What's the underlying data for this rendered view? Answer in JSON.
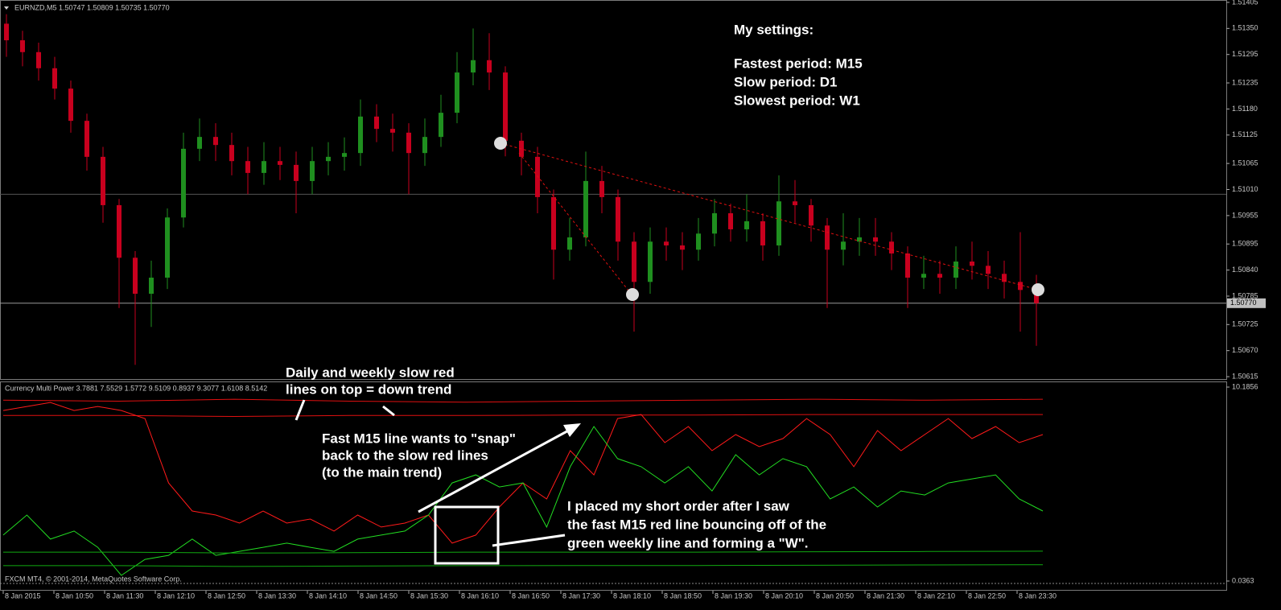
{
  "chart_data": [
    {
      "type": "candlestick",
      "title": "EURNZD,M5  1.50747 1.50809 1.50735 1.50770",
      "ylim": [
        1.5061,
        1.5141
      ],
      "yticks": [
        1.51405,
        {
          "value": 1.5135,
          "label": "1.51350"
        },
        1.51295,
        1.51235,
        {
          "value": 1.5118,
          "label": "1.51180"
        },
        1.51125,
        1.51065,
        {
          "value": 1.5101,
          "label": "1.51010"
        },
        1.50955,
        1.50895,
        {
          "value": 1.5084,
          "label": "1.50840"
        },
        1.50785,
        1.50725,
        {
          "value": 1.5067,
          "label": "1.50670"
        },
        1.50615
      ],
      "current_price": {
        "value": 1.5077,
        "label": "1.50770"
      },
      "level_line": 1.51,
      "up_color": "#1f8f1f",
      "down_color": "#c8001e",
      "x_labels": [
        "8 Jan 2015",
        "8 Jan 10:50",
        "8 Jan 11:30",
        "8 Jan 12:10",
        "8 Jan 12:50",
        "8 Jan 13:30",
        "8 Jan 14:10",
        "8 Jan 14:50",
        "8 Jan 15:30",
        "8 Jan 16:10",
        "8 Jan 16:50",
        "8 Jan 17:30",
        "8 Jan 18:10",
        "8 Jan 18:50",
        "8 Jan 19:30",
        "8 Jan 20:10",
        "8 Jan 20:50",
        "8 Jan 21:30",
        "8 Jan 22:10",
        "8 Jan 22:50",
        "8 Jan 23:30"
      ],
      "annotations": [
        "My settings:",
        "Fastest period: M15",
        "Slow period:        D1",
        "Slowest period:  W1"
      ],
      "open": [
        1.5136,
        1.51325,
        1.513,
        1.51266,
        1.51223,
        1.51155,
        1.51079,
        1.50977,
        1.50866,
        1.5079,
        1.50824,
        1.50951,
        1.51096,
        1.51121,
        1.51104,
        1.5107,
        1.51045,
        1.5107,
        1.51062,
        1.51028,
        1.5107,
        1.51079,
        1.51087,
        1.51164,
        1.51138,
        1.5113,
        1.51087,
        1.51121,
        1.51172,
        1.51257,
        1.51283,
        1.51257,
        1.51113,
        1.51079,
        1.50994,
        1.50883,
        1.50909,
        1.51028,
        1.50994,
        1.509,
        1.50815,
        1.509,
        1.50892,
        1.50883,
        1.50917,
        1.5096,
        1.50926,
        1.50943,
        1.50892,
        1.50985,
        1.50977,
        1.50934,
        1.50883,
        1.509,
        1.50909,
        1.509,
        1.50875,
        1.50824,
        1.50832,
        1.50824,
        1.50858,
        1.50849,
        1.50832,
        1.50815,
        1.50798
      ],
      "high": [
        1.5138,
        1.51345,
        1.5132,
        1.5129,
        1.5124,
        1.5117,
        1.511,
        1.5099,
        1.5088,
        1.5086,
        1.5097,
        1.5113,
        1.5116,
        1.5115,
        1.5113,
        1.511,
        1.5111,
        1.511,
        1.5109,
        1.511,
        1.5111,
        1.5112,
        1.512,
        1.5119,
        1.5117,
        1.5115,
        1.5116,
        1.5121,
        1.513,
        1.5135,
        1.5134,
        1.5127,
        1.5113,
        1.511,
        1.5101,
        1.5095,
        1.5109,
        1.5106,
        1.5101,
        1.5092,
        1.5093,
        1.5093,
        1.5092,
        1.5095,
        1.5099,
        1.5098,
        1.51,
        1.5096,
        1.5104,
        1.5103,
        1.5099,
        1.5095,
        1.5096,
        1.5095,
        1.5095,
        1.5092,
        1.5089,
        1.5087,
        1.5086,
        1.5089,
        1.509,
        1.5088,
        1.5086,
        1.5092,
        1.5083
      ],
      "low": [
        1.5129,
        1.5127,
        1.5124,
        1.512,
        1.5113,
        1.5105,
        1.5094,
        1.5076,
        1.5064,
        1.5072,
        1.508,
        1.5093,
        1.5107,
        1.5107,
        1.5104,
        1.51,
        1.5102,
        1.5103,
        1.5096,
        1.51,
        1.5104,
        1.5105,
        1.5106,
        1.5111,
        1.5109,
        1.51,
        1.5106,
        1.511,
        1.5115,
        1.5123,
        1.5122,
        1.5108,
        1.5104,
        1.5096,
        1.5082,
        1.5086,
        1.5089,
        1.5096,
        1.5086,
        1.5071,
        1.5079,
        1.5086,
        1.5084,
        1.5086,
        1.5089,
        1.509,
        1.509,
        1.5086,
        1.5087,
        1.5094,
        1.509,
        1.5076,
        1.5085,
        1.5087,
        1.5087,
        1.5084,
        1.5076,
        1.508,
        1.5079,
        1.508,
        1.5082,
        1.508,
        1.5078,
        1.5071,
        1.5068
      ],
      "close": [
        1.51325,
        1.513,
        1.51266,
        1.51223,
        1.51155,
        1.51079,
        1.50977,
        1.50866,
        1.5079,
        1.50824,
        1.50951,
        1.51096,
        1.51121,
        1.51104,
        1.5107,
        1.51045,
        1.5107,
        1.51062,
        1.51028,
        1.5107,
        1.51079,
        1.51087,
        1.51164,
        1.51138,
        1.5113,
        1.51087,
        1.51121,
        1.51172,
        1.51257,
        1.51283,
        1.51257,
        1.51113,
        1.51079,
        1.50994,
        1.50883,
        1.50909,
        1.51028,
        1.50994,
        1.509,
        1.50815,
        1.509,
        1.50892,
        1.50883,
        1.50917,
        1.5096,
        1.50926,
        1.50943,
        1.50892,
        1.50985,
        1.50977,
        1.50934,
        1.50883,
        1.509,
        1.50909,
        1.509,
        1.50875,
        1.50824,
        1.50832,
        1.50824,
        1.50858,
        1.50849,
        1.50832,
        1.50815,
        1.50798,
        1.5077
      ]
    },
    {
      "type": "line",
      "title": "Currency Multi Power 3.7881 7.5529 1.5772 9.5109 0.8937 9.3077 1.6108 8.5142",
      "ylim": [
        0.0363,
        10.1856
      ],
      "yticks": [
        10.1856,
        0.0363
      ],
      "footer": "FXCM MT4, © 2001-2014, MetaQuotes Software Corp.",
      "annotations": [
        "Daily and weekly slow red",
        "lines on top = down trend",
        "Fast M15 line wants to \"snap\"",
        "back to the slow red lines",
        "(to the main trend)",
        "I placed my short order after I saw",
        "the fast M15 red line bouncing off of the",
        "green weekly line and forming a \"W\"."
      ],
      "series": [
        {
          "color": "#e01010",
          "values": [
            9.5,
            9.45,
            9.55,
            9.45,
            9.4,
            9.45,
            9.5,
            9.55,
            9.5,
            9.55
          ]
        },
        {
          "color": "#e01010",
          "values": [
            8.7,
            8.7,
            8.65,
            8.7,
            8.7,
            8.72,
            8.72,
            8.75,
            8.75,
            8.75
          ]
        },
        {
          "color": "#ff1a1a",
          "values": [
            8.96,
            9.17,
            9.38,
            8.96,
            9.17,
            8.96,
            8.54,
            5.17,
            3.7,
            3.49,
            3.07,
            3.7,
            3.07,
            3.28,
            2.65,
            3.49,
            2.86,
            3.07,
            3.49,
            2.02,
            2.44,
            3.91,
            5.17,
            4.33,
            6.86,
            5.59,
            8.54,
            8.75,
            7.28,
            8.12,
            6.86,
            7.7,
            7.07,
            7.49,
            8.54,
            7.7,
            6.02,
            7.91,
            6.86,
            7.7,
            8.54,
            7.49,
            8.12,
            7.28,
            7.7
          ]
        },
        {
          "color": "#22dd22",
          "values": [
            2.44,
            3.49,
            2.23,
            2.65,
            1.8,
            0.33,
            1.17,
            1.38,
            2.23,
            1.38,
            1.59,
            1.8,
            2.02,
            1.8,
            1.59,
            2.23,
            2.44,
            2.65,
            3.49,
            5.17,
            5.59,
            4.96,
            5.17,
            2.86,
            6.02,
            8.12,
            6.44,
            6.02,
            5.17,
            6.02,
            4.75,
            6.65,
            5.59,
            6.44,
            6.02,
            4.33,
            4.96,
            3.91,
            4.75,
            4.54,
            5.17,
            5.38,
            5.59,
            4.33,
            3.7
          ]
        },
        {
          "color": "#11aa11",
          "values": [
            1.55,
            1.55,
            1.5,
            1.52,
            1.55,
            1.55,
            1.55,
            1.57,
            1.58,
            1.6
          ]
        },
        {
          "color": "#11aa11",
          "values": [
            0.84,
            0.84,
            0.8,
            0.82,
            0.84,
            0.85,
            0.85,
            0.86,
            0.88,
            0.89
          ]
        }
      ]
    }
  ]
}
